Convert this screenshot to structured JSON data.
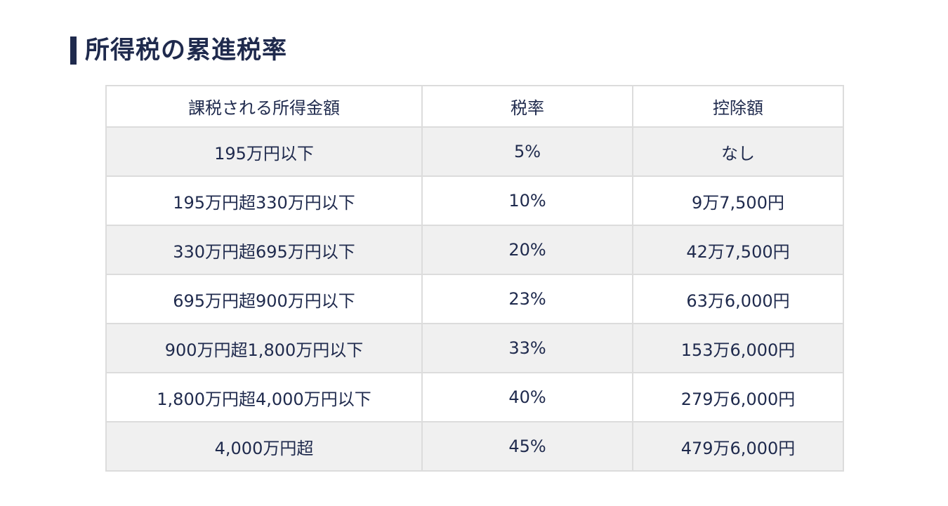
{
  "title": "所得税の累進税率",
  "table": {
    "headers": [
      "課税される所得金額",
      "税率",
      "控除額"
    ],
    "rows": [
      [
        "195万円以下",
        "5%",
        "なし"
      ],
      [
        "195万円超330万円以下",
        "10%",
        "9万7,500円"
      ],
      [
        "330万円超695万円以下",
        "20%",
        "42万7,500円"
      ],
      [
        "695万円超900万円以下",
        "23%",
        "63万6,000円"
      ],
      [
        "900万円超1,800万円以下",
        "33%",
        "153万6,000円"
      ],
      [
        "1,800万円超4,000万円以下",
        "40%",
        "279万6,000円"
      ],
      [
        "4,000万円超",
        "45%",
        "479万6,000円"
      ]
    ]
  },
  "colors": {
    "text": "#1f2a4d",
    "accent_bar": "#1f2a4d",
    "row_shade": "#f0f0f0",
    "border": "#dcdcdc"
  }
}
